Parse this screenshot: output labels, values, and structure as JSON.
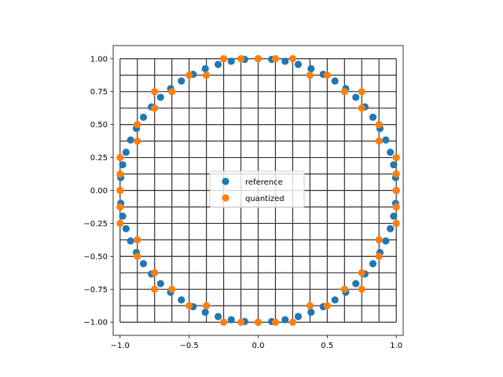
{
  "chart_data": {
    "type": "scatter",
    "title": "",
    "xlabel": "",
    "ylabel": "",
    "xlim": [
      -1.05,
      1.05
    ],
    "ylim": [
      -1.1,
      1.1
    ],
    "xticks": [
      -1.0,
      -0.5,
      0.0,
      0.5,
      1.0
    ],
    "xtick_labels": [
      "−1.0",
      "−0.5",
      "0.0",
      "0.5",
      "1.0"
    ],
    "yticks": [
      -1.0,
      -0.75,
      -0.5,
      -0.25,
      0.0,
      0.25,
      0.5,
      0.75,
      1.0
    ],
    "ytick_labels": [
      "−1.00",
      "−0.75",
      "−0.50",
      "−0.25",
      "0.00",
      "0.25",
      "0.50",
      "0.75",
      "1.00"
    ],
    "grid": {
      "x": [
        -1.0,
        -0.875,
        -0.75,
        -0.625,
        -0.5,
        -0.375,
        -0.25,
        -0.125,
        0.0,
        0.125,
        0.25,
        0.375,
        0.5,
        0.625,
        0.75,
        0.875,
        1.0
      ],
      "y": [
        -1.0,
        -0.875,
        -0.75,
        -0.625,
        -0.5,
        -0.375,
        -0.25,
        -0.125,
        0.0,
        0.125,
        0.25,
        0.375,
        0.5,
        0.625,
        0.75,
        0.875,
        1.0
      ],
      "color": "#333333"
    },
    "legend": {
      "placement": "center"
    },
    "series": [
      {
        "name": "reference",
        "color": "#1f77b4",
        "points": [
          [
            1.0,
            0.0
          ],
          [
            0.995,
            0.098
          ],
          [
            0.981,
            0.195
          ],
          [
            0.957,
            0.29
          ],
          [
            0.924,
            0.383
          ],
          [
            0.882,
            0.471
          ],
          [
            0.831,
            0.556
          ],
          [
            0.773,
            0.634
          ],
          [
            0.707,
            0.707
          ],
          [
            0.634,
            0.773
          ],
          [
            0.556,
            0.831
          ],
          [
            0.471,
            0.882
          ],
          [
            0.383,
            0.924
          ],
          [
            0.29,
            0.957
          ],
          [
            0.195,
            0.981
          ],
          [
            0.098,
            0.995
          ],
          [
            0.0,
            1.0
          ],
          [
            -0.098,
            0.995
          ],
          [
            -0.195,
            0.981
          ],
          [
            -0.29,
            0.957
          ],
          [
            -0.383,
            0.924
          ],
          [
            -0.471,
            0.882
          ],
          [
            -0.556,
            0.831
          ],
          [
            -0.634,
            0.773
          ],
          [
            -0.707,
            0.707
          ],
          [
            -0.773,
            0.634
          ],
          [
            -0.831,
            0.556
          ],
          [
            -0.882,
            0.471
          ],
          [
            -0.924,
            0.383
          ],
          [
            -0.957,
            0.29
          ],
          [
            -0.981,
            0.195
          ],
          [
            -0.995,
            0.098
          ],
          [
            -1.0,
            0.0
          ],
          [
            -0.995,
            -0.098
          ],
          [
            -0.981,
            -0.195
          ],
          [
            -0.957,
            -0.29
          ],
          [
            -0.924,
            -0.383
          ],
          [
            -0.882,
            -0.471
          ],
          [
            -0.831,
            -0.556
          ],
          [
            -0.773,
            -0.634
          ],
          [
            -0.707,
            -0.707
          ],
          [
            -0.634,
            -0.773
          ],
          [
            -0.556,
            -0.831
          ],
          [
            -0.471,
            -0.882
          ],
          [
            -0.383,
            -0.924
          ],
          [
            -0.29,
            -0.957
          ],
          [
            -0.195,
            -0.981
          ],
          [
            -0.098,
            -0.995
          ],
          [
            0.0,
            -1.0
          ],
          [
            0.098,
            -0.995
          ],
          [
            0.195,
            -0.981
          ],
          [
            0.29,
            -0.957
          ],
          [
            0.383,
            -0.924
          ],
          [
            0.471,
            -0.882
          ],
          [
            0.556,
            -0.831
          ],
          [
            0.634,
            -0.773
          ],
          [
            0.707,
            -0.707
          ],
          [
            0.773,
            -0.634
          ],
          [
            0.831,
            -0.556
          ],
          [
            0.882,
            -0.471
          ],
          [
            0.924,
            -0.383
          ],
          [
            0.957,
            -0.29
          ],
          [
            0.981,
            -0.195
          ],
          [
            0.995,
            -0.098
          ]
        ]
      },
      {
        "name": "quantized",
        "color": "#ff7f0e",
        "points": [
          [
            1.0,
            0.0
          ],
          [
            1.0,
            0.125
          ],
          [
            1.0,
            0.25
          ],
          [
            0.875,
            0.375
          ],
          [
            0.875,
            0.5
          ],
          [
            0.75,
            0.625
          ],
          [
            0.75,
            0.75
          ],
          [
            0.625,
            0.75
          ],
          [
            0.5,
            0.875
          ],
          [
            0.375,
            0.875
          ],
          [
            0.25,
            1.0
          ],
          [
            0.125,
            1.0
          ],
          [
            0.0,
            1.0
          ],
          [
            -0.125,
            1.0
          ],
          [
            -0.25,
            1.0
          ],
          [
            -0.375,
            0.875
          ],
          [
            -0.5,
            0.875
          ],
          [
            -0.625,
            0.75
          ],
          [
            -0.75,
            0.75
          ],
          [
            -0.75,
            0.625
          ],
          [
            -0.875,
            0.5
          ],
          [
            -0.875,
            0.375
          ],
          [
            -1.0,
            0.25
          ],
          [
            -1.0,
            0.125
          ],
          [
            -1.0,
            0.0
          ],
          [
            -1.0,
            -0.125
          ],
          [
            -1.0,
            -0.25
          ],
          [
            -0.875,
            -0.375
          ],
          [
            -0.875,
            -0.5
          ],
          [
            -0.75,
            -0.625
          ],
          [
            -0.75,
            -0.75
          ],
          [
            -0.625,
            -0.75
          ],
          [
            -0.5,
            -0.875
          ],
          [
            -0.375,
            -0.875
          ],
          [
            -0.25,
            -1.0
          ],
          [
            -0.125,
            -1.0
          ],
          [
            0.0,
            -1.0
          ],
          [
            0.125,
            -1.0
          ],
          [
            0.25,
            -1.0
          ],
          [
            0.375,
            -0.875
          ],
          [
            0.5,
            -0.875
          ],
          [
            0.625,
            -0.75
          ],
          [
            0.75,
            -0.75
          ],
          [
            0.75,
            -0.625
          ],
          [
            0.875,
            -0.5
          ],
          [
            0.875,
            -0.375
          ],
          [
            1.0,
            -0.25
          ],
          [
            1.0,
            -0.125
          ]
        ]
      }
    ]
  }
}
